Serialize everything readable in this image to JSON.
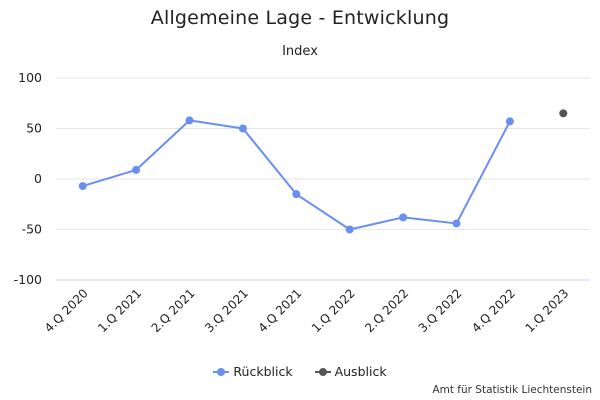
{
  "chart_data": {
    "type": "line",
    "title": "Allgemeine Lage - Entwicklung",
    "subtitle": "Index",
    "categories": [
      "4.Q 2020",
      "1.Q 2021",
      "2.Q 2021",
      "3.Q 2021",
      "4.Q 2021",
      "1.Q 2022",
      "2.Q 2022",
      "3.Q 2022",
      "4.Q 2022",
      "1.Q 2023"
    ],
    "ylim": [
      -100,
      100
    ],
    "yticks": [
      100,
      50,
      0,
      -50,
      -100
    ],
    "grid": true,
    "legend_position": "bottom",
    "series": [
      {
        "name": "Rückblick",
        "color": "#6a8ff2",
        "values": [
          -7,
          9,
          58,
          50,
          -15,
          -50,
          -38,
          -44,
          57,
          null
        ]
      },
      {
        "name": "Ausblick",
        "color": "#555555",
        "values": [
          null,
          null,
          null,
          null,
          null,
          null,
          null,
          null,
          null,
          65
        ]
      }
    ]
  },
  "credits": "Amt für Statistik Liechtenstein"
}
